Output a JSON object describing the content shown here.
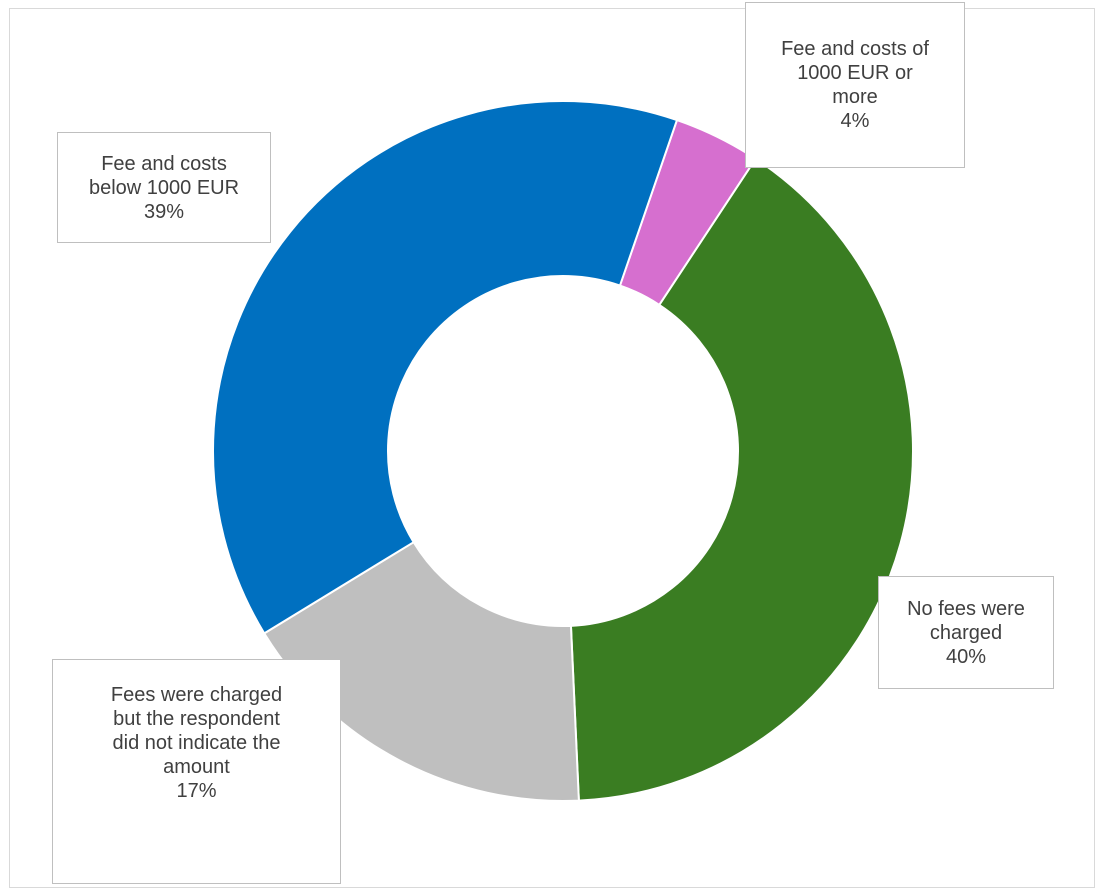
{
  "chart_data": {
    "type": "pie",
    "variant": "donut",
    "title": "",
    "slices": [
      {
        "label": "Fee and costs of 1000 EUR or more",
        "value": 4,
        "value_label": "4%",
        "color": "#d66fcf"
      },
      {
        "label": "No fees were charged",
        "value": 40,
        "value_label": "40%",
        "color": "#3a7d22"
      },
      {
        "label": "Fees were charged but the respondent did not indicate the amount",
        "value": 17,
        "value_label": "17%",
        "color": "#bfbfbf"
      },
      {
        "label": "Fee and costs below 1000 EUR",
        "value": 39,
        "value_label": "39%",
        "color": "#0070c0"
      }
    ],
    "legend": "none",
    "data_labels": "outside with boxes"
  },
  "labels": {
    "fee_1000_more": {
      "lines": [
        "Fee and costs of",
        "1000 EUR or",
        "more"
      ],
      "pct": "4%"
    },
    "no_fees": {
      "lines": [
        "No fees were",
        "charged"
      ],
      "pct": "40%"
    },
    "not_indicated": {
      "lines": [
        "Fees were charged",
        "but the respondent",
        "did not indicate the",
        "amount"
      ],
      "pct": "17%"
    },
    "fee_below_1000": {
      "lines": [
        "Fee and costs",
        "below 1000 EUR"
      ],
      "pct": "39%"
    }
  }
}
